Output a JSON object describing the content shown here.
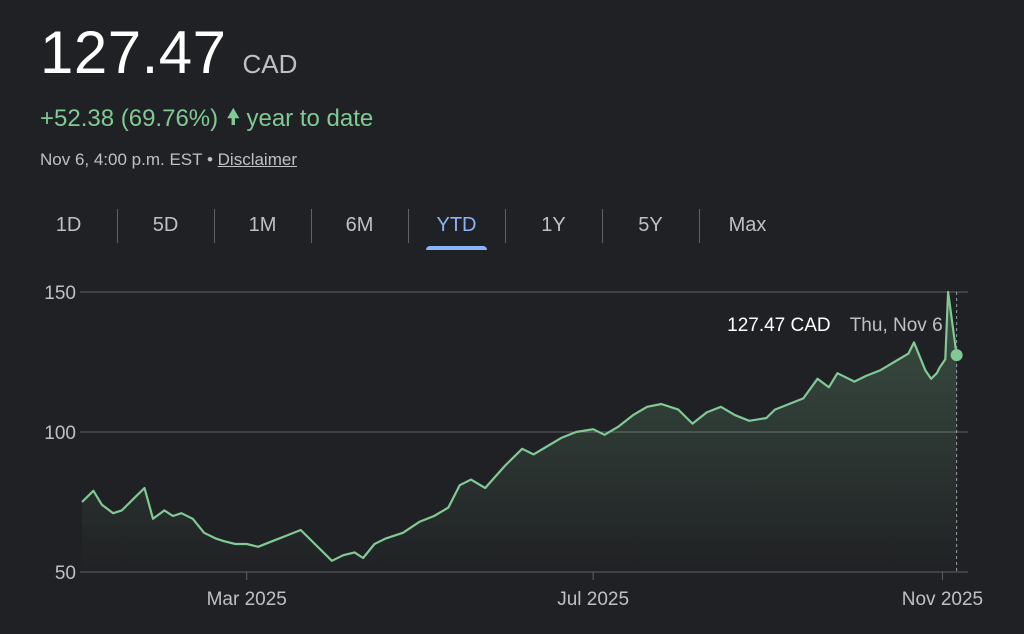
{
  "quote": {
    "price": "127.47",
    "currency": "CAD",
    "change": "+52.38 (69.76%)",
    "change_arrow": "arrow-up-icon",
    "period_label": "year to date",
    "timestamp": "Nov 6, 4:00 p.m. EST",
    "separator": "•",
    "disclaimer": "Disclaimer"
  },
  "tabs": [
    {
      "label": "1D"
    },
    {
      "label": "5D"
    },
    {
      "label": "1M"
    },
    {
      "label": "6M"
    },
    {
      "label": "YTD",
      "active": true
    },
    {
      "label": "1Y"
    },
    {
      "label": "5Y"
    },
    {
      "label": "Max"
    }
  ],
  "colors": {
    "background": "#202124",
    "line": "#81c995",
    "active_tab": "#8ab4f8",
    "gridline": "#5f6368"
  },
  "chart_data": {
    "type": "line",
    "title": "",
    "xlabel": "",
    "ylabel": "",
    "ylim": [
      50,
      150
    ],
    "yticks": [
      50,
      100,
      150
    ],
    "xticks": [
      {
        "label": "Mar 2025",
        "date": "2025-03-01"
      },
      {
        "label": "Jul 2025",
        "date": "2025-07-01"
      },
      {
        "label": "Nov 2025",
        "date": "2025-11-01"
      }
    ],
    "grid": true,
    "tooltip": {
      "value": "127.47 CAD",
      "date": "Thu, Nov 6"
    },
    "series": [
      {
        "x": [
          "2025-01-02",
          "2025-01-06",
          "2025-01-09",
          "2025-01-13",
          "2025-01-16",
          "2025-01-20",
          "2025-01-24",
          "2025-01-27",
          "2025-01-31",
          "2025-02-03",
          "2025-02-06",
          "2025-02-10",
          "2025-02-14",
          "2025-02-18",
          "2025-02-21",
          "2025-02-25",
          "2025-03-01",
          "2025-03-05",
          "2025-03-10",
          "2025-03-15",
          "2025-03-20",
          "2025-03-25",
          "2025-03-31",
          "2025-04-04",
          "2025-04-08",
          "2025-04-11",
          "2025-04-15",
          "2025-04-19",
          "2025-04-25",
          "2025-05-01",
          "2025-05-06",
          "2025-05-11",
          "2025-05-15",
          "2025-05-19",
          "2025-05-24",
          "2025-05-31",
          "2025-06-06",
          "2025-06-10",
          "2025-06-15",
          "2025-06-20",
          "2025-06-25",
          "2025-07-01",
          "2025-07-05",
          "2025-07-10",
          "2025-07-15",
          "2025-07-20",
          "2025-07-25",
          "2025-07-31",
          "2025-08-05",
          "2025-08-10",
          "2025-08-15",
          "2025-08-20",
          "2025-08-25",
          "2025-08-31",
          "2025-09-03",
          "2025-09-08",
          "2025-09-13",
          "2025-09-18",
          "2025-09-22",
          "2025-09-25",
          "2025-10-01",
          "2025-10-05",
          "2025-10-10",
          "2025-10-15",
          "2025-10-20",
          "2025-10-22",
          "2025-10-24",
          "2025-10-26",
          "2025-10-28",
          "2025-10-30",
          "2025-10-31",
          "2025-11-02",
          "2025-11-03",
          "2025-11-06"
        ],
        "y": [
          75,
          79,
          74,
          71,
          72,
          76,
          80,
          69,
          72,
          70,
          71,
          69,
          64,
          62,
          61,
          60,
          60,
          59,
          61,
          63,
          65,
          60,
          54,
          56,
          57,
          55,
          60,
          62,
          64,
          68,
          70,
          73,
          81,
          83,
          80,
          88,
          94,
          92,
          95,
          98,
          100,
          101,
          99,
          102,
          106,
          109,
          110,
          108,
          103,
          107,
          109,
          106,
          104,
          105,
          108,
          110,
          112,
          119,
          116,
          121,
          118,
          120,
          122,
          125,
          128,
          132,
          127,
          122,
          119,
          121,
          123,
          126,
          150,
          127.47
        ]
      }
    ]
  }
}
